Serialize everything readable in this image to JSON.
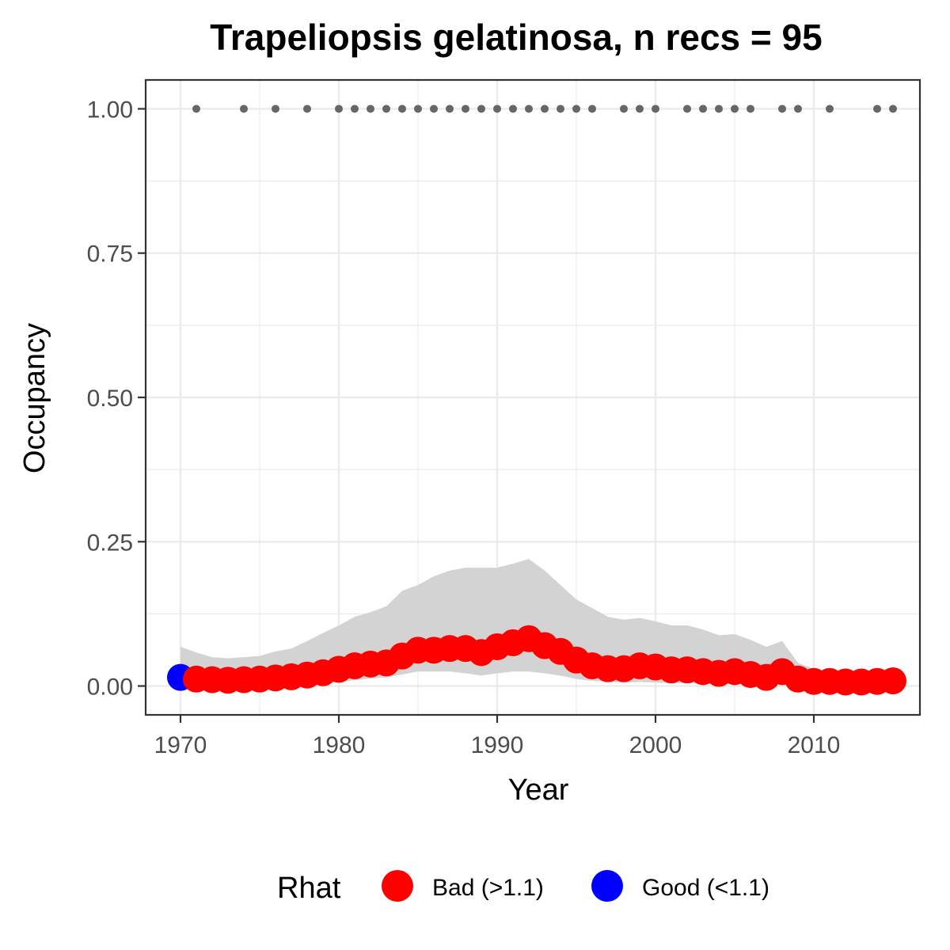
{
  "chart_data": {
    "type": "line",
    "title": "Trapeliopsis gelatinosa, n recs = 95",
    "xlabel": "Year",
    "ylabel": "Occupancy",
    "xlim": [
      1967.8,
      2016.7
    ],
    "ylim": [
      -0.05,
      1.05
    ],
    "x_ticks": [
      1970,
      1980,
      1990,
      2000,
      2010
    ],
    "x_tick_labels": [
      "1970",
      "1980",
      "1990",
      "2000",
      "2010"
    ],
    "y_ticks": [
      0,
      0.25,
      0.5,
      0.75,
      1.0
    ],
    "y_tick_labels": [
      "0.00",
      "0.25",
      "0.50",
      "0.75",
      "1.00"
    ],
    "grid": true,
    "legend": {
      "title": "Rhat",
      "placement": "bottom",
      "entries": [
        {
          "label": "Bad (>1.1)",
          "color": "#ff0000"
        },
        {
          "label": "Good (<1.1)",
          "color": "#0000ff"
        }
      ]
    },
    "colors": {
      "bad": "#ff0000",
      "good": "#0000ff",
      "ribbon": "#d3d3d3",
      "record": "#666666"
    },
    "series": [
      {
        "x": [
          1970,
          1971,
          1972,
          1973,
          1974,
          1975,
          1976,
          1977,
          1978,
          1979,
          1980,
          1981,
          1982,
          1983,
          1984,
          1985,
          1986,
          1987,
          1988,
          1989,
          1990,
          1991,
          1992,
          1993,
          1994,
          1995,
          1996,
          1997,
          1998,
          1999,
          2000,
          2001,
          2002,
          2003,
          2004,
          2005,
          2006,
          2007,
          2008,
          2009,
          2010,
          2011,
          2012,
          2013,
          2014,
          2015
        ],
        "y": [
          0.015,
          0.012,
          0.011,
          0.01,
          0.011,
          0.012,
          0.014,
          0.016,
          0.019,
          0.023,
          0.029,
          0.035,
          0.038,
          0.04,
          0.052,
          0.062,
          0.062,
          0.065,
          0.065,
          0.058,
          0.068,
          0.075,
          0.082,
          0.07,
          0.06,
          0.045,
          0.035,
          0.03,
          0.03,
          0.035,
          0.033,
          0.028,
          0.028,
          0.025,
          0.022,
          0.025,
          0.02,
          0.015,
          0.025,
          0.012,
          0.008,
          0.008,
          0.007,
          0.007,
          0.008,
          0.009
        ],
        "lower": [
          0.002,
          0.002,
          0.002,
          0.002,
          0.002,
          0.002,
          0.002,
          0.003,
          0.004,
          0.005,
          0.007,
          0.01,
          0.013,
          0.015,
          0.02,
          0.025,
          0.025,
          0.025,
          0.022,
          0.018,
          0.022,
          0.025,
          0.025,
          0.022,
          0.018,
          0.012,
          0.009,
          0.007,
          0.006,
          0.007,
          0.006,
          0.005,
          0.005,
          0.004,
          0.004,
          0.004,
          0.003,
          0.003,
          0.004,
          0.002,
          0.001,
          0.001,
          0.001,
          0.001,
          0.001,
          0.001
        ],
        "upper": [
          0.068,
          0.058,
          0.05,
          0.048,
          0.05,
          0.052,
          0.06,
          0.065,
          0.078,
          0.092,
          0.105,
          0.12,
          0.128,
          0.138,
          0.165,
          0.175,
          0.19,
          0.2,
          0.205,
          0.205,
          0.205,
          0.212,
          0.22,
          0.2,
          0.175,
          0.15,
          0.135,
          0.12,
          0.115,
          0.118,
          0.112,
          0.105,
          0.105,
          0.098,
          0.088,
          0.09,
          0.08,
          0.068,
          0.078,
          0.04,
          0.03,
          0.025,
          0.022,
          0.02,
          0.02,
          0.022
        ],
        "rhat": [
          "Good",
          "Bad",
          "Bad",
          "Bad",
          "Bad",
          "Bad",
          "Bad",
          "Bad",
          "Bad",
          "Bad",
          "Bad",
          "Bad",
          "Bad",
          "Bad",
          "Bad",
          "Bad",
          "Bad",
          "Bad",
          "Bad",
          "Bad",
          "Bad",
          "Bad",
          "Bad",
          "Bad",
          "Bad",
          "Bad",
          "Bad",
          "Bad",
          "Bad",
          "Bad",
          "Bad",
          "Bad",
          "Bad",
          "Bad",
          "Bad",
          "Bad",
          "Bad",
          "Bad",
          "Bad",
          "Bad",
          "Bad",
          "Bad",
          "Bad",
          "Bad",
          "Bad",
          "Bad"
        ]
      }
    ],
    "records": {
      "y": 1.0,
      "x": [
        1971,
        1974,
        1976,
        1978,
        1980,
        1981,
        1982,
        1983,
        1984,
        1985,
        1986,
        1987,
        1988,
        1989,
        1990,
        1991,
        1992,
        1993,
        1994,
        1995,
        1996,
        1998,
        1999,
        2000,
        2002,
        2003,
        2004,
        2005,
        2006,
        2008,
        2009,
        2011,
        2014,
        2015
      ]
    }
  }
}
